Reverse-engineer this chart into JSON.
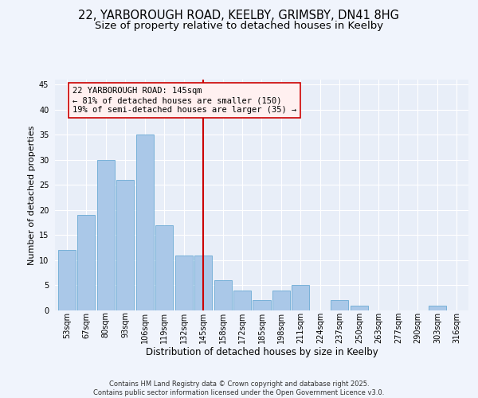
{
  "title1": "22, YARBOROUGH ROAD, KEELBY, GRIMSBY, DN41 8HG",
  "title2": "Size of property relative to detached houses in Keelby",
  "xlabel": "Distribution of detached houses by size in Keelby",
  "ylabel": "Number of detached properties",
  "categories": [
    "53sqm",
    "67sqm",
    "80sqm",
    "93sqm",
    "106sqm",
    "119sqm",
    "132sqm",
    "145sqm",
    "158sqm",
    "172sqm",
    "185sqm",
    "198sqm",
    "211sqm",
    "224sqm",
    "237sqm",
    "250sqm",
    "263sqm",
    "277sqm",
    "290sqm",
    "303sqm",
    "316sqm"
  ],
  "values": [
    12,
    19,
    30,
    26,
    35,
    17,
    11,
    11,
    6,
    4,
    2,
    4,
    5,
    0,
    2,
    1,
    0,
    0,
    0,
    1,
    0
  ],
  "bar_color": "#aac8e8",
  "bar_edge_color": "#6aaad4",
  "vline_x": 7,
  "vline_color": "#cc0000",
  "annotation_text": "22 YARBOROUGH ROAD: 145sqm\n← 81% of detached houses are smaller (150)\n19% of semi-detached houses are larger (35) →",
  "annotation_box_facecolor": "#fff0f0",
  "annotation_box_edgecolor": "#cc0000",
  "ylim": [
    0,
    46
  ],
  "yticks": [
    0,
    5,
    10,
    15,
    20,
    25,
    30,
    35,
    40,
    45
  ],
  "background_color": "#e8eef8",
  "grid_color": "#ffffff",
  "fig_facecolor": "#f0f4fc",
  "footer": "Contains HM Land Registry data © Crown copyright and database right 2025.\nContains public sector information licensed under the Open Government Licence v3.0.",
  "title1_fontsize": 10.5,
  "title2_fontsize": 9.5,
  "xlabel_fontsize": 8.5,
  "ylabel_fontsize": 8,
  "tick_fontsize": 7,
  "annotation_fontsize": 7.5,
  "footer_fontsize": 6
}
